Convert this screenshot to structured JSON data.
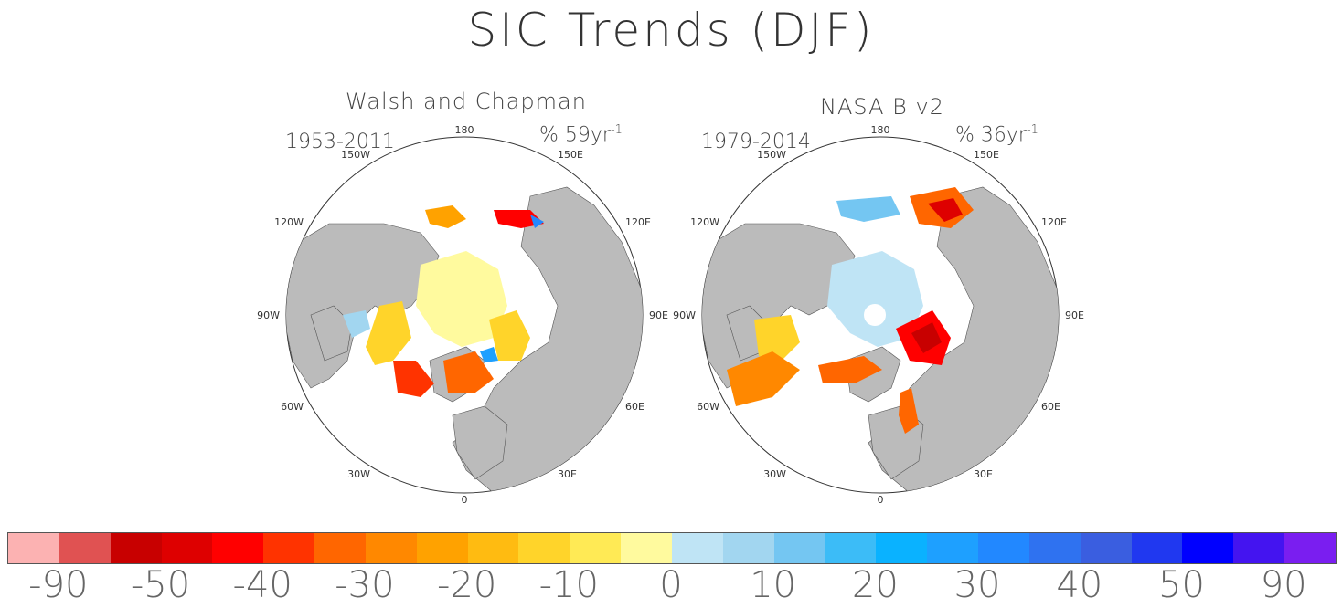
{
  "title": "SIC Trends (DJF)",
  "panels": [
    {
      "name": "Walsh and Chapman",
      "period": "1953-2011",
      "unit_prefix": "% 59yr",
      "unit_exp": "-1"
    },
    {
      "name": "NASA B v2",
      "period": "1979-2014",
      "unit_prefix": "% 36yr",
      "unit_exp": "-1"
    }
  ],
  "map_labels": {
    "top": "180",
    "bottom": "0",
    "left_upper": "150W",
    "right_upper": "150E",
    "left_mid_upper": "120W",
    "right_mid_upper": "120E",
    "left_mid": "90W",
    "right_mid": "90E",
    "left_mid_lower": "60W",
    "right_mid_lower": "60E",
    "left_lower": "30W",
    "right_lower": "30E"
  },
  "colorbar": {
    "colors": [
      "#fcb2b2",
      "#e05252",
      "#c80000",
      "#de0000",
      "#ff0000",
      "#ff3300",
      "#ff6600",
      "#ff8800",
      "#ffa200",
      "#ffbb11",
      "#ffd42a",
      "#ffea55",
      "#fffa9e",
      "#bfe4f5",
      "#a2d6f0",
      "#74c6f2",
      "#3cbcf7",
      "#0ab2ff",
      "#1ea0ff",
      "#2288ff",
      "#2f72f0",
      "#3a5ee0",
      "#2038f0",
      "#0000ff",
      "#4414f0",
      "#7a1ef0"
    ],
    "labels": [
      "-90",
      "-50",
      "-40",
      "-30",
      "-20",
      "-10",
      "0",
      "10",
      "20",
      "30",
      "40",
      "50",
      "90"
    ]
  }
}
